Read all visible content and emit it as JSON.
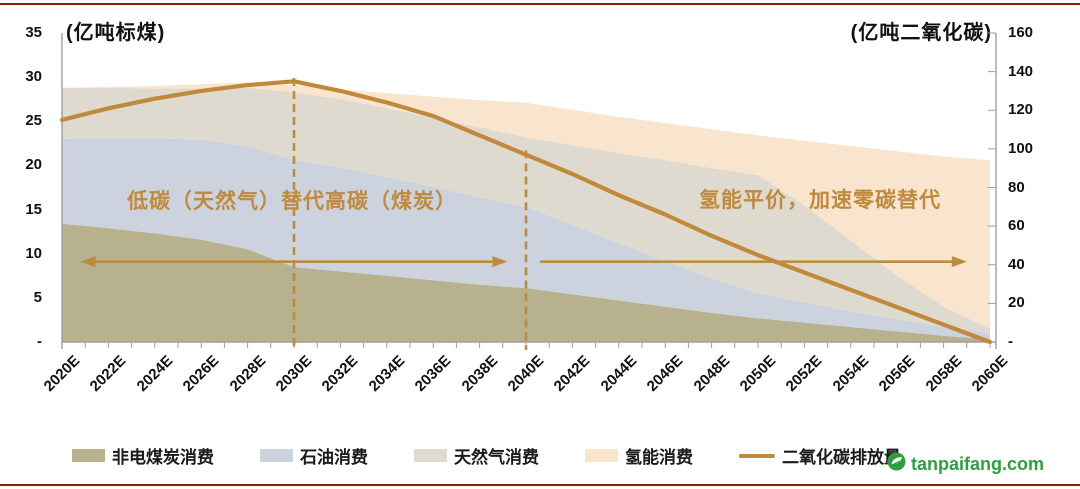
{
  "rules": {
    "color": "#8a1d15"
  },
  "chart_data": {
    "type": "area",
    "left_axis_title": "(亿吨标煤)",
    "right_axis_title": "(亿吨二氧化碳)",
    "x_labels": [
      "2020E",
      "2022E",
      "2024E",
      "2026E",
      "2028E",
      "2030E",
      "2032E",
      "2034E",
      "2036E",
      "2038E",
      "2040E",
      "2042E",
      "2044E",
      "2046E",
      "2048E",
      "2050E",
      "2052E",
      "2054E",
      "2056E",
      "2058E",
      "2060E"
    ],
    "x_years": [
      2020,
      2022,
      2024,
      2026,
      2028,
      2030,
      2032,
      2034,
      2036,
      2038,
      2040,
      2042,
      2044,
      2046,
      2048,
      2050,
      2052,
      2054,
      2056,
      2058,
      2060
    ],
    "left_axis": {
      "tick_labels": [
        "35",
        "30",
        "25",
        "20",
        "15",
        "10",
        "5",
        "-"
      ],
      "tick_values": [
        35,
        30,
        25,
        20,
        15,
        10,
        5,
        0
      ],
      "min": 0,
      "max": 35
    },
    "right_axis": {
      "tick_labels": [
        "160",
        "140",
        "120",
        "100",
        "80",
        "60",
        "40",
        "20",
        "-"
      ],
      "tick_values": [
        160,
        140,
        120,
        100,
        80,
        60,
        40,
        20,
        0
      ],
      "min": 0,
      "max": 160
    },
    "grid": false,
    "series": [
      {
        "id": "coal",
        "name": "非电煤炭消费",
        "type": "area",
        "axis": "left",
        "color": "#b7b28d",
        "values": [
          13.4,
          12.9,
          12.3,
          11.6,
          10.5,
          8.5,
          8.0,
          7.5,
          7.0,
          6.5,
          6.1,
          5.4,
          4.7,
          4.0,
          3.3,
          2.7,
          2.2,
          1.7,
          1.2,
          0.7,
          0.3
        ]
      },
      {
        "id": "oil",
        "name": "石油消费",
        "type": "area",
        "axis": "left",
        "color": "#ccd3df",
        "values": [
          9.6,
          10.2,
          10.8,
          11.3,
          11.7,
          12.1,
          11.8,
          11.2,
          10.6,
          9.9,
          9.2,
          7.9,
          6.5,
          5.2,
          3.9,
          2.8,
          2.3,
          1.8,
          1.4,
          1.0,
          0.7
        ]
      },
      {
        "id": "gas",
        "name": "天然气消费",
        "type": "area",
        "axis": "left",
        "color": "#dfdacf",
        "values": [
          5.8,
          5.7,
          5.6,
          5.8,
          6.6,
          7.7,
          7.7,
          7.8,
          7.8,
          7.9,
          7.9,
          9.0,
          10.2,
          11.4,
          12.5,
          13.4,
          11.0,
          8.0,
          4.9,
          2.3,
          0.5
        ]
      },
      {
        "id": "hydrogen",
        "name": "氢能消费",
        "type": "area",
        "axis": "left",
        "color": "#f9e4cd",
        "values": [
          0.0,
          0.1,
          0.3,
          0.5,
          0.6,
          0.8,
          1.1,
          1.7,
          2.4,
          3.1,
          3.9,
          4.0,
          4.1,
          4.2,
          4.4,
          4.5,
          7.3,
          10.7,
          14.1,
          17.0,
          19.1
        ]
      },
      {
        "id": "co2",
        "name": "二氧化碳排放量",
        "type": "line",
        "axis": "right",
        "color": "#c0893c",
        "values": [
          115,
          121,
          126,
          130,
          133,
          135,
          130,
          124,
          117,
          107,
          97,
          87,
          76,
          66,
          55,
          45,
          36,
          27,
          18,
          9,
          0
        ]
      }
    ],
    "annotations": {
      "accent_color": "#bf8a3d",
      "phase1_label": "低碳（天然气）替代高碳（煤炭）",
      "phase2_label": "氢能平价，加速零碳替代",
      "phase_boundaries": [
        {
          "year": 2030,
          "top_value": 29.9
        },
        {
          "year": 2040,
          "top_value": 21.7
        }
      ],
      "arrows": [
        {
          "from_year": 2020.8,
          "to_year": 2039.2,
          "y_value": 9.1,
          "heads": "both"
        },
        {
          "from_year": 2040.6,
          "to_year": 2059.0,
          "y_value": 9.1,
          "heads": "right"
        }
      ]
    }
  },
  "legend": {
    "items": [
      {
        "label": "非电煤炭消费",
        "type": "area",
        "color": "#b7b28d"
      },
      {
        "label": "石油消费",
        "type": "area",
        "color": "#ccd3df"
      },
      {
        "label": "天然气消费",
        "type": "area",
        "color": "#dfdacf"
      },
      {
        "label": "氢能消费",
        "type": "area",
        "color": "#f9e4cd"
      },
      {
        "label": "二氧化碳排放量",
        "type": "line",
        "color": "#c0893c"
      }
    ]
  },
  "watermark": {
    "text": "tanpaifang.com",
    "color": "#2f9e3f"
  }
}
